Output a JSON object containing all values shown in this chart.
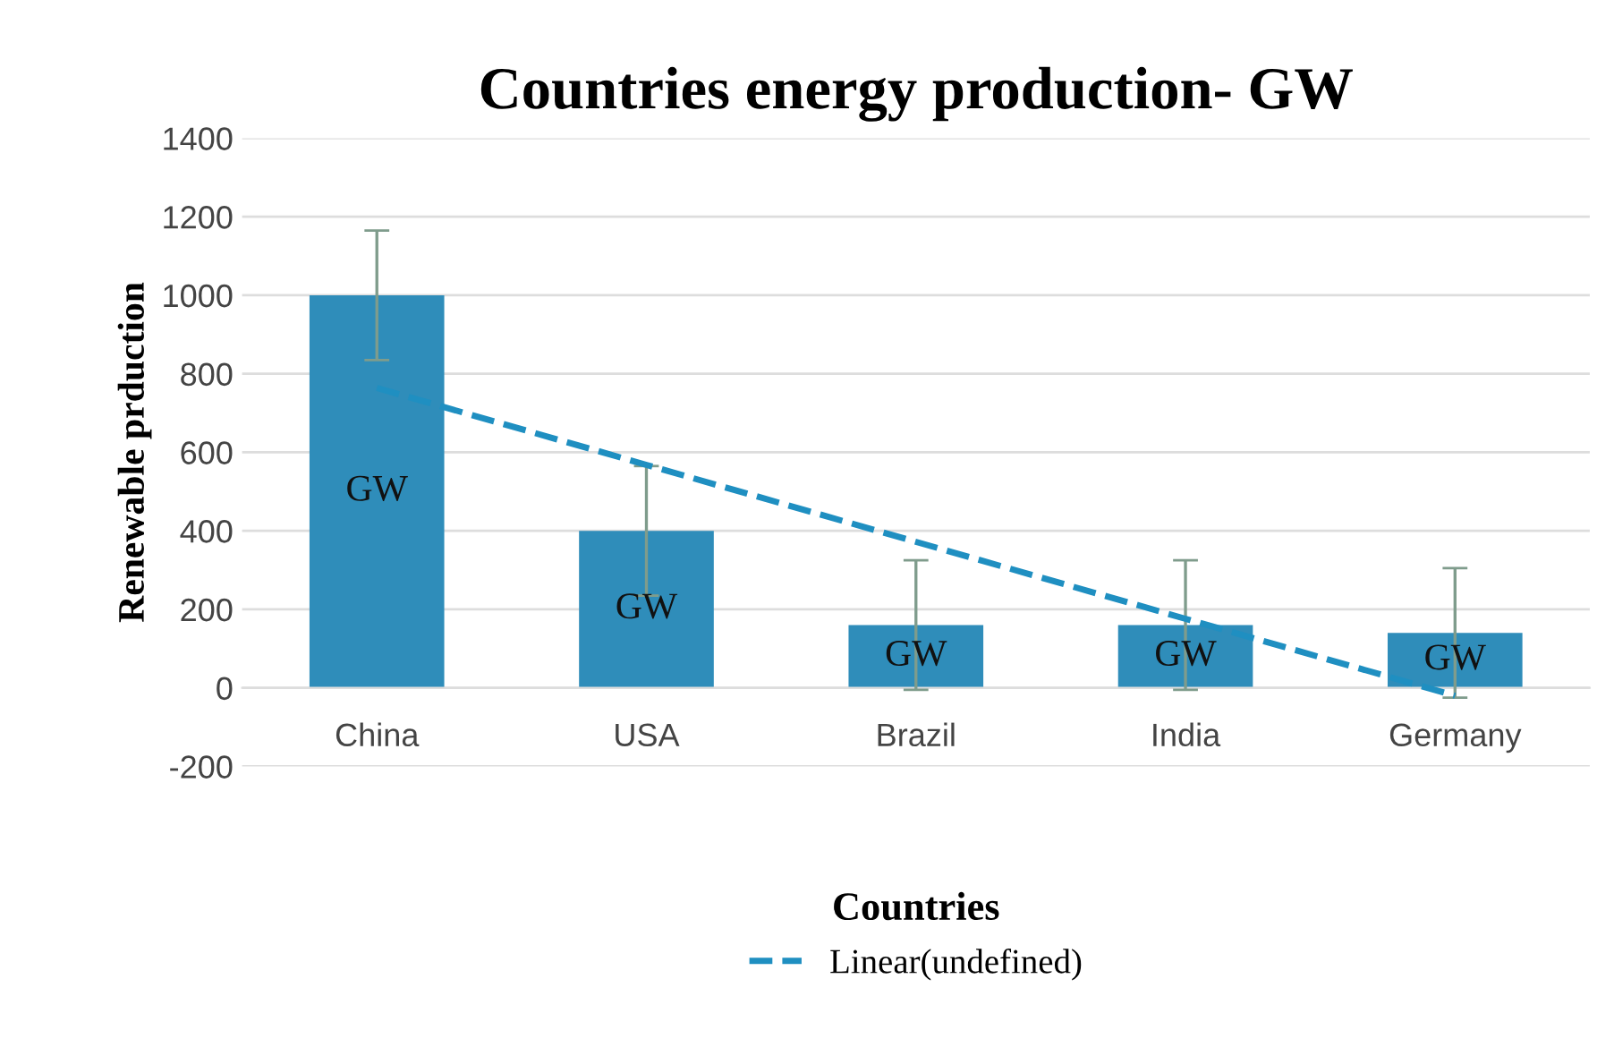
{
  "chart_data": {
    "type": "bar",
    "title": "Countries energy production- GW",
    "xlabel": "Countries",
    "ylabel": "Renewable prduction",
    "categories": [
      "China",
      "USA",
      "Brazil",
      "India",
      "Germany"
    ],
    "series": [
      {
        "color": "#2f8dba",
        "values": [
          1000,
          400,
          160,
          160,
          140
        ],
        "errors": [
          165,
          165,
          165,
          165,
          165
        ],
        "value_labels": [
          "GW",
          "GW",
          "GW",
          "GW",
          "GW"
        ]
      },
      {
        "type": "line",
        "name": "Linear(undefined)",
        "color": "#1f8fc1",
        "line_style": "dashed",
        "values": [
          764,
          568,
          372,
          176,
          -20
        ]
      }
    ],
    "ylim": [
      -200,
      1400
    ],
    "yticks": [
      -200,
      0,
      200,
      400,
      600,
      800,
      1000,
      1200,
      1400
    ],
    "grid": "y",
    "legend": "bottom"
  }
}
